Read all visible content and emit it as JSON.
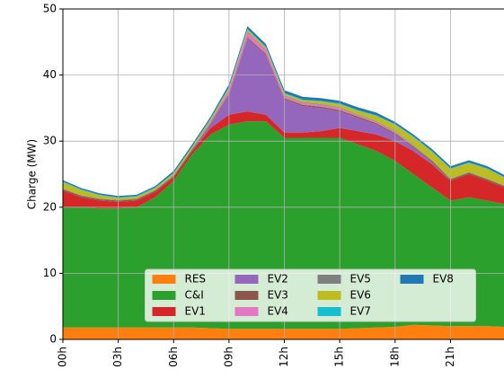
{
  "chart_data": {
    "type": "stacked-area",
    "y_label": "Charge (MW)",
    "x": [
      0,
      1,
      2,
      3,
      4,
      5,
      6,
      7,
      8,
      9,
      10,
      11,
      12,
      13,
      14,
      15,
      16,
      17,
      18,
      19,
      20,
      21,
      22,
      23,
      23.9
    ],
    "xlim": [
      0,
      23.9
    ],
    "xticks": [
      {
        "value": 0,
        "label": "00h"
      },
      {
        "value": 3,
        "label": "03h"
      },
      {
        "value": 6,
        "label": "06h"
      },
      {
        "value": 9,
        "label": "09h"
      },
      {
        "value": 12,
        "label": "12h"
      },
      {
        "value": 15,
        "label": "15h"
      },
      {
        "value": 18,
        "label": "18h"
      },
      {
        "value": 21,
        "label": "21h"
      }
    ],
    "ylim": [
      0,
      50
    ],
    "yticks": [
      0,
      10,
      20,
      30,
      40,
      50
    ],
    "grid": true,
    "legend": "lower center",
    "series": [
      {
        "name": "RES",
        "color": "#ff7f0e",
        "values": [
          1.8,
          1.8,
          1.8,
          1.8,
          1.8,
          1.8,
          1.8,
          1.8,
          1.7,
          1.6,
          1.6,
          1.6,
          1.6,
          1.6,
          1.6,
          1.6,
          1.7,
          1.8,
          1.9,
          2.2,
          2.1,
          2.0,
          2.0,
          2.0,
          1.9
        ]
      },
      {
        "name": "C&I",
        "color": "#2ca02c",
        "values": [
          18.2,
          18.2,
          18,
          18,
          18.2,
          19.7,
          22.2,
          26.2,
          29.3,
          30.9,
          31.4,
          31.4,
          28.9,
          28.9,
          28.9,
          28.9,
          27.8,
          26.7,
          25.1,
          22.8,
          20.9,
          19,
          19.5,
          19,
          18.6
        ]
      },
      {
        "name": "EV1",
        "color": "#d62728",
        "values": [
          2.5,
          1.5,
          1.2,
          1,
          1,
          0.8,
          0.5,
          0.5,
          1,
          1.5,
          1.5,
          1,
          0.8,
          0.8,
          1,
          1.5,
          2,
          2.5,
          3,
          3.5,
          3.5,
          3,
          3.5,
          3,
          2.5
        ]
      },
      {
        "name": "EV2",
        "color": "#9467bd",
        "values": [
          0,
          0,
          0,
          0,
          0,
          0,
          0,
          0,
          0.5,
          3,
          11,
          9,
          5,
          4,
          3.5,
          2.5,
          2,
          1.5,
          1,
          0.5,
          0.3,
          0,
          0,
          0,
          0
        ]
      },
      {
        "name": "EV3",
        "color": "#8c564b",
        "values": [
          0.2,
          0.2,
          0.2,
          0.2,
          0.2,
          0.2,
          0.2,
          0.2,
          0.2,
          0.2,
          0.2,
          0.2,
          0.2,
          0.2,
          0.2,
          0.2,
          0.2,
          0.2,
          0.2,
          0.2,
          0.2,
          0.2,
          0.2,
          0.2,
          0.2
        ]
      },
      {
        "name": "EV4",
        "color": "#e377c2",
        "values": [
          0,
          0,
          0,
          0,
          0,
          0,
          0,
          0,
          0.2,
          0.5,
          0.8,
          0.6,
          0.3,
          0.3,
          0.3,
          0.3,
          0.2,
          0.2,
          0.2,
          0.1,
          0,
          0,
          0,
          0,
          0
        ]
      },
      {
        "name": "EV5",
        "color": "#7f7f7f",
        "values": [
          0.1,
          0.1,
          0.1,
          0.1,
          0.1,
          0.1,
          0.1,
          0.1,
          0.1,
          0.1,
          0.1,
          0.1,
          0.1,
          0.1,
          0.1,
          0.1,
          0.1,
          0.1,
          0.1,
          0.1,
          0.1,
          0.1,
          0.1,
          0.1,
          0.1
        ]
      },
      {
        "name": "EV6",
        "color": "#bcbd22",
        "values": [
          1,
          0.8,
          0.5,
          0.3,
          0.3,
          0.3,
          0.3,
          0.3,
          0.3,
          0.3,
          0.3,
          0.3,
          0.3,
          0.3,
          0.4,
          0.5,
          0.6,
          0.8,
          1,
          1.2,
          1.3,
          1.5,
          1.4,
          1.5,
          1.2
        ]
      },
      {
        "name": "EV7",
        "color": "#17becf",
        "values": [
          0.1,
          0.1,
          0.1,
          0.1,
          0.1,
          0.1,
          0.1,
          0.1,
          0.1,
          0.1,
          0.1,
          0.1,
          0.1,
          0.1,
          0.1,
          0.1,
          0.1,
          0.1,
          0.1,
          0.1,
          0.1,
          0.1,
          0.1,
          0.1,
          0.1
        ]
      },
      {
        "name": "EV8",
        "color": "#1f77b4",
        "values": [
          0.2,
          0.2,
          0.2,
          0.2,
          0.2,
          0.2,
          0.3,
          0.3,
          0.3,
          0.4,
          0.4,
          0.4,
          0.4,
          0.4,
          0.4,
          0.4,
          0.4,
          0.4,
          0.3,
          0.3,
          0.3,
          0.3,
          0.3,
          0.3,
          0.3
        ]
      }
    ]
  }
}
